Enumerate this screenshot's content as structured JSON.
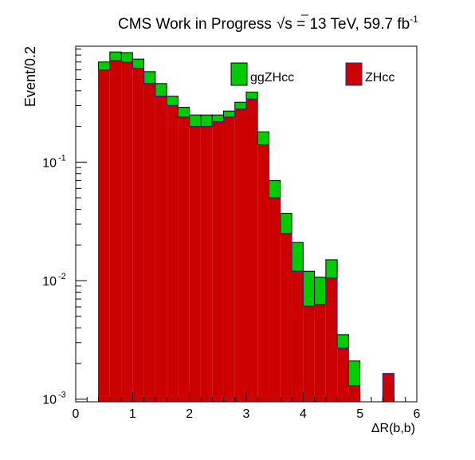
{
  "chart_data": {
    "type": "bar",
    "title_text": "CMS Work in Progress",
    "title_sqrt": "√",
    "title_s": "s",
    "title_rest": " = 13 TeV, 59.7 fb",
    "title_sup": "-1",
    "xlabel": "ΔR(b,b)",
    "ylabel": "Event/0.2",
    "xlim": [
      0,
      6
    ],
    "ylim": [
      0.00095,
      0.95
    ],
    "yscale": "log",
    "bin_width": 0.2,
    "x_ticks": [
      "0",
      "1",
      "2",
      "3",
      "4",
      "5",
      "6"
    ],
    "y_ticks": [
      {
        "value": 0.001,
        "base": "10",
        "exp": "-3"
      },
      {
        "value": 0.01,
        "base": "10",
        "exp": "-2"
      },
      {
        "value": 0.1,
        "base": "10",
        "exp": "-1"
      }
    ],
    "bin_edges": [
      0.4,
      0.6,
      0.8,
      1.0,
      1.2,
      1.4,
      1.6,
      1.8,
      2.0,
      2.2,
      2.4,
      2.6,
      2.8,
      3.0,
      3.2,
      3.4,
      3.6,
      3.8,
      4.0,
      4.2,
      4.4,
      4.6,
      4.8,
      5.0,
      5.2,
      5.4
    ],
    "series": [
      {
        "name": "ZHcc",
        "color": "#cc0000",
        "edge_color": "#2a2a8a",
        "values": [
          0.6,
          0.72,
          0.7,
          0.62,
          0.46,
          0.36,
          0.3,
          0.24,
          0.2,
          0.2,
          0.22,
          0.24,
          0.28,
          0.34,
          0.14,
          0.05,
          0.025,
          0.012,
          0.0061,
          0.0063,
          0.0105,
          0.0027,
          0.0013,
          0.0,
          0.0,
          0.00165
        ]
      },
      {
        "name": "ggZHcc",
        "color": "#00cc00",
        "edge_color": "#000000",
        "values": [
          0.1,
          0.13,
          0.14,
          0.12,
          0.12,
          0.1,
          0.06,
          0.05,
          0.05,
          0.05,
          0.03,
          0.03,
          0.04,
          0.05,
          0.04,
          0.02,
          0.012,
          0.009,
          0.0059,
          0.0044,
          0.0045,
          0.0008,
          0.0008,
          0.0,
          0.0,
          0.0
        ]
      }
    ],
    "legend_placement": "top, inside plot"
  }
}
